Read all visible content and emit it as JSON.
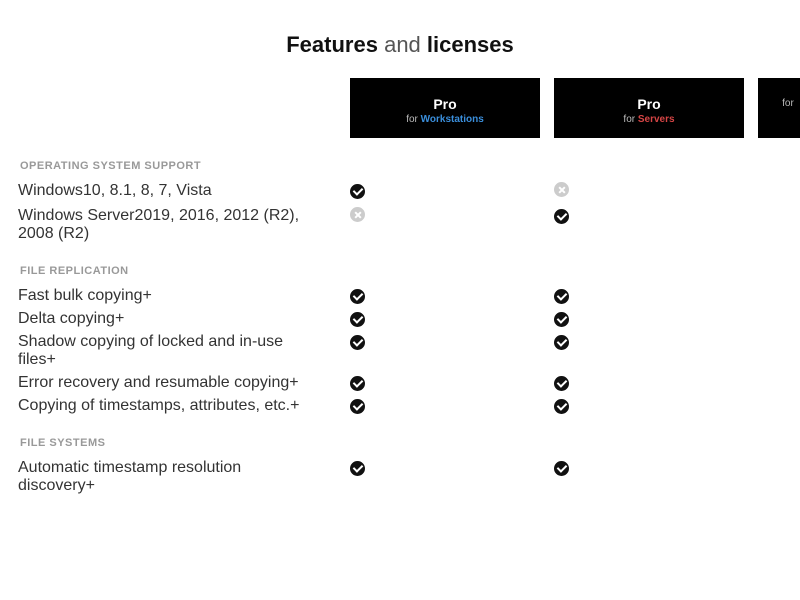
{
  "title": {
    "w1": "Features",
    "w2": "and",
    "w3": "licenses"
  },
  "columns": [
    {
      "name": "Pro",
      "for": "for",
      "target": "Workstations",
      "cls": "ws"
    },
    {
      "name": "Pro",
      "for": "for",
      "target": "Servers",
      "cls": "srv"
    },
    {
      "name": "",
      "for": "for",
      "target": "",
      "cls": ""
    }
  ],
  "sections": [
    {
      "head": "OPERATING SYSTEM SUPPORT",
      "rows": [
        {
          "label": "Windows",
          "detail": "10, 8.1, 8, 7, Vista",
          "plus": false,
          "cells": [
            "check",
            "x",
            ""
          ]
        },
        {
          "label": "Windows Server",
          "detail": "2019, 2016, 2012 (R2), 2008 (R2)",
          "plus": false,
          "cells": [
            "x",
            "check",
            ""
          ]
        }
      ]
    },
    {
      "head": "FILE REPLICATION",
      "rows": [
        {
          "label": "Fast bulk copying",
          "detail": "",
          "plus": true,
          "cells": [
            "check",
            "check",
            ""
          ]
        },
        {
          "label": "Delta copying",
          "detail": "",
          "plus": true,
          "cells": [
            "check",
            "check",
            ""
          ]
        },
        {
          "label": "Shadow copying of locked and in-use files",
          "detail": "",
          "plus": true,
          "cells": [
            "check",
            "check",
            ""
          ]
        },
        {
          "label": "Error recovery and resumable copying",
          "detail": "",
          "plus": true,
          "cells": [
            "check",
            "check",
            ""
          ]
        },
        {
          "label": "Copying of timestamps, attributes, etc.",
          "detail": "",
          "plus": true,
          "cells": [
            "check",
            "check",
            ""
          ]
        }
      ]
    },
    {
      "head": "FILE SYSTEMS",
      "rows": [
        {
          "label": "Automatic timestamp resolution discovery",
          "detail": "",
          "plus": true,
          "cells": [
            "check",
            "check",
            ""
          ]
        }
      ]
    }
  ]
}
